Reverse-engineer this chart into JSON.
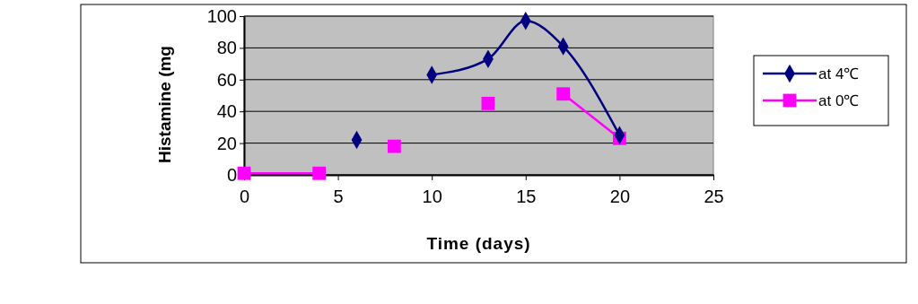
{
  "chart_data": {
    "type": "line",
    "xlabel": "Time (days)",
    "ylabel": "Histamine (mg",
    "xlim": [
      0,
      25
    ],
    "xticks": [
      0,
      5,
      10,
      15,
      20,
      25
    ],
    "ylim": [
      0,
      100
    ],
    "yticks": [
      0,
      20,
      40,
      60,
      80,
      100
    ],
    "grid": "y",
    "legend": "right",
    "series": [
      {
        "name": "at 4℃",
        "color": "#000080",
        "marker": "diamond",
        "x": [
          6,
          8,
          10,
          13,
          15,
          17,
          20
        ],
        "values": [
          22,
          null,
          63,
          73,
          97,
          81,
          25
        ]
      },
      {
        "name": "at 0℃",
        "color": "#ff00ff",
        "marker": "square",
        "x": [
          0,
          4,
          6,
          8,
          10,
          13,
          15,
          17,
          20
        ],
        "values": [
          1,
          1,
          null,
          18,
          null,
          45,
          null,
          51,
          23
        ]
      }
    ]
  }
}
